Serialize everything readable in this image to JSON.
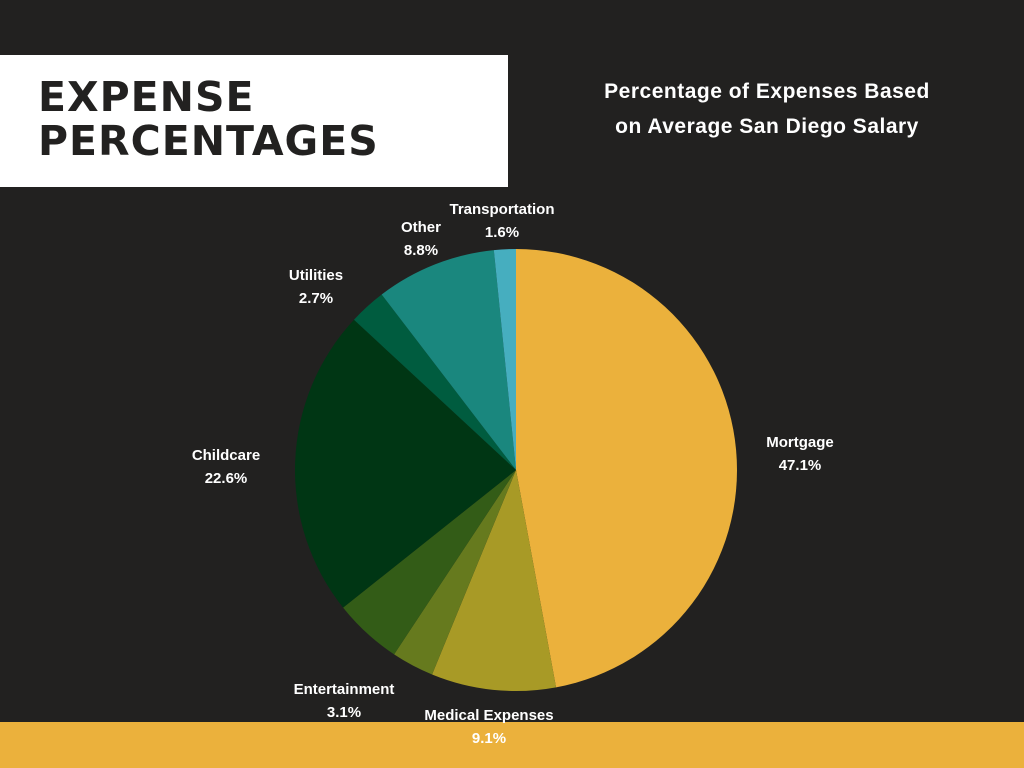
{
  "heading": {
    "line1": "EXPENSE",
    "line2": "PERCENTAGES"
  },
  "chart_data": {
    "type": "pie",
    "title": "Percentage of Expenses Based on Average San Diego Salary",
    "title_lines": [
      "Percentage of Expenses Based",
      "on Average San Diego Salary"
    ],
    "start": "top, clockwise",
    "slices": [
      {
        "label": "Mortgage",
        "value": 47.1,
        "value_label": "47.1%",
        "color": "#EBB13C"
      },
      {
        "label": "Medical Expenses",
        "value": 9.1,
        "value_label": "9.1%",
        "color": "#A89A26"
      },
      {
        "label": "Entertainment",
        "value": 3.1,
        "value_label": "3.1%",
        "color": "#667A1E"
      },
      {
        "label": "",
        "value": 5.0,
        "value_label": "",
        "color": "#335C17"
      },
      {
        "label": "Childcare",
        "value": 22.6,
        "value_label": "22.6%",
        "color": "#003614"
      },
      {
        "label": "Utilities",
        "value": 2.7,
        "value_label": "2.7%",
        "color": "#005C3F"
      },
      {
        "label": "Other",
        "value": 8.8,
        "value_label": "8.8%",
        "color": "#1A877E"
      },
      {
        "label": "Transportation",
        "value": 1.6,
        "value_label": "1.6%",
        "color": "#46AEBF"
      }
    ]
  },
  "colors": {
    "background": "#222120",
    "accent": "#EBB13C"
  }
}
